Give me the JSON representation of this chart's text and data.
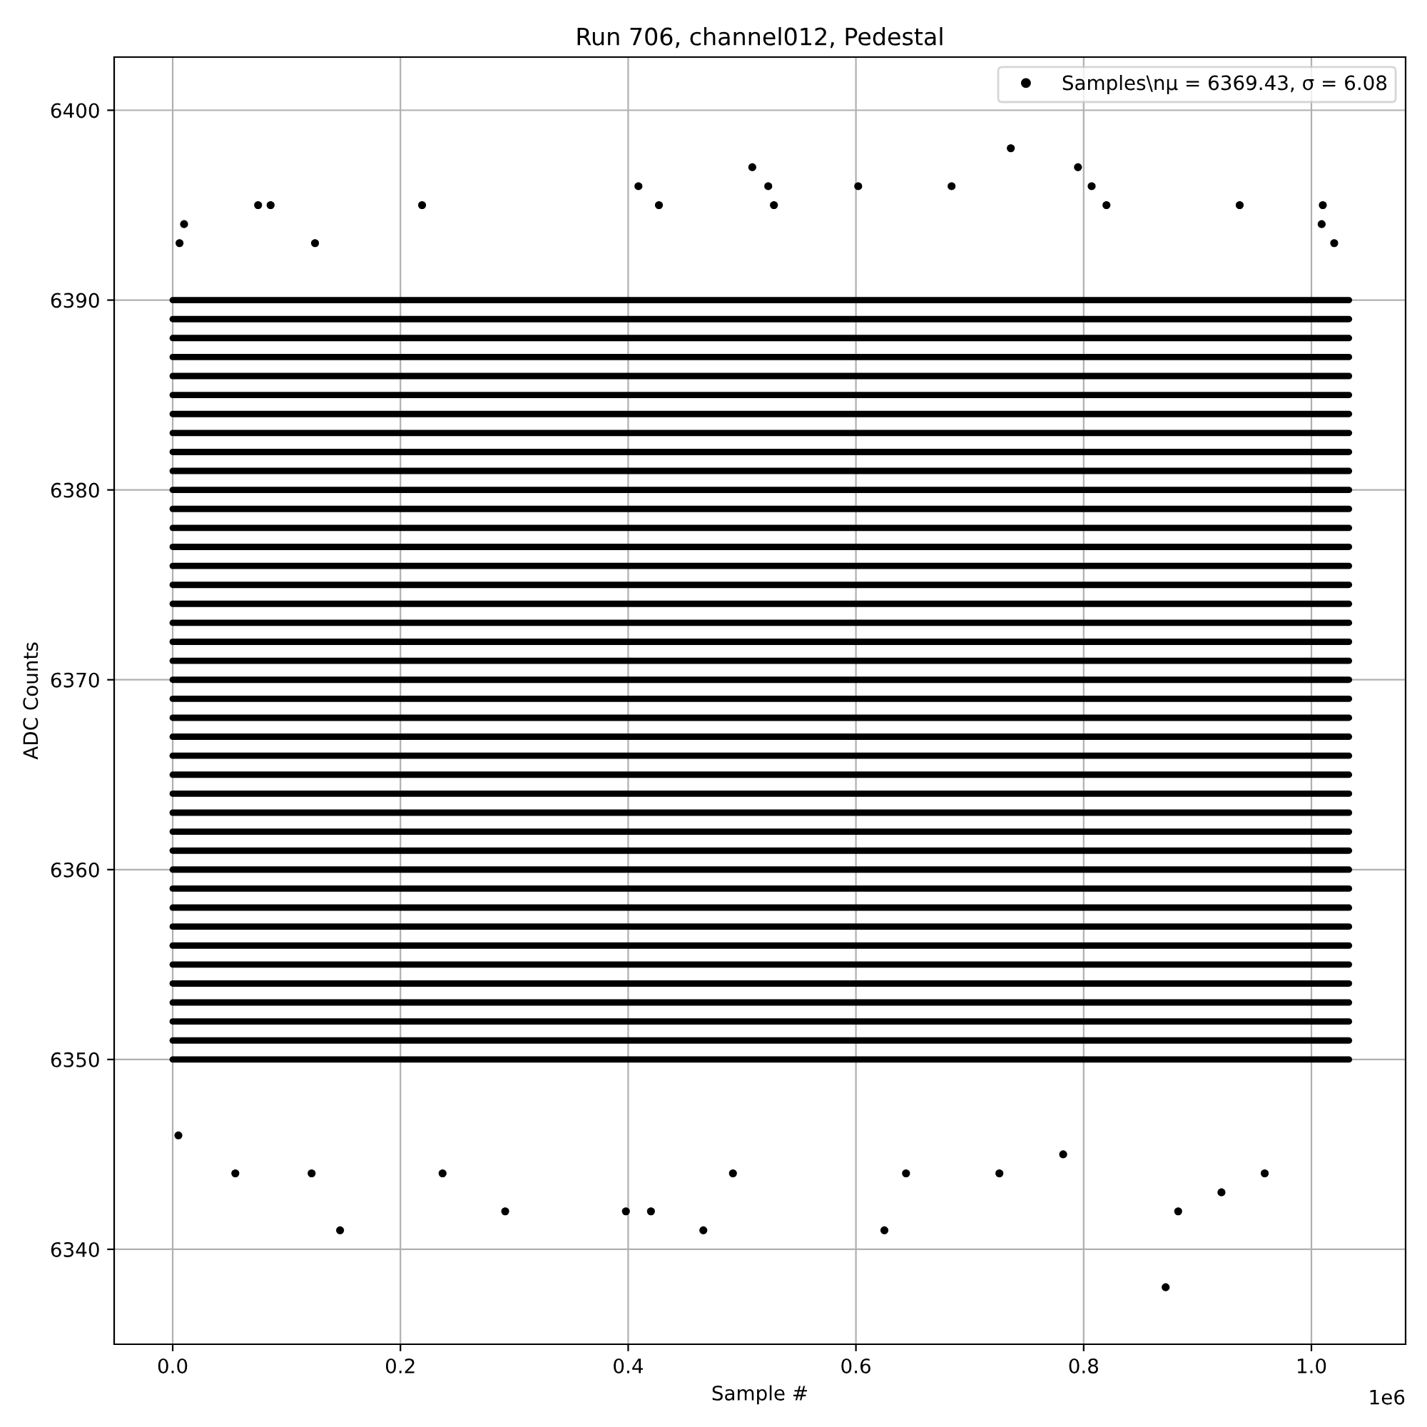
{
  "chart_data": {
    "type": "scatter",
    "title": "Run 706, channel012, Pedestal",
    "xlabel": "Sample #",
    "ylabel": "ADC Counts",
    "x": [
      0,
      1.033
    ],
    "xlim": [
      -0.0514,
      1.0827
    ],
    "ylim": [
      6335,
      6402.8
    ],
    "xticks": [
      {
        "value": 0,
        "label": "0.0"
      },
      0.2,
      0.4,
      0.6,
      0.8,
      {
        "value": 1,
        "label": "1.0"
      }
    ],
    "yticks": [
      6340,
      6350,
      6360,
      6370,
      6380,
      6390,
      6400
    ],
    "annotations": [
      "1e6"
    ],
    "grid": true,
    "legend": "top right",
    "series": [
      {
        "name": "Samples\\nμ = 6369.43, σ = 6.08",
        "color": "#000000",
        "marker": "circle",
        "x": [
          0.006,
          0.01,
          0.075,
          0.086,
          0.125,
          0.219,
          0.409,
          0.427,
          0.509,
          0.523,
          0.528,
          0.602,
          0.684,
          0.736,
          0.795,
          0.807,
          0.82,
          0.937,
          1.009,
          1.01,
          1.02,
          0.005,
          0.055,
          0.122,
          0.147,
          0.237,
          0.292,
          0.398,
          0.42,
          0.466,
          0.492,
          0.625,
          0.644,
          0.726,
          0.782,
          0.872,
          0.883,
          0.921,
          0.959
        ],
        "values": [
          6393,
          6394,
          6395,
          6395,
          6393,
          6395,
          6396,
          6395,
          6397,
          6396,
          6395,
          6396,
          6396,
          6398,
          6397,
          6396,
          6395,
          6395,
          6394,
          6395,
          6393,
          6346,
          6344,
          6344,
          6341,
          6344,
          6342,
          6342,
          6342,
          6341,
          6344,
          6341,
          6344,
          6344,
          6345,
          6338,
          6342,
          6343,
          6344
        ]
      },
      {
        "type": "line",
        "values": [
          6350,
          6350
        ]
      },
      {
        "type": "line",
        "values": [
          6351,
          6351
        ]
      },
      {
        "type": "line",
        "values": [
          6352,
          6352
        ]
      },
      {
        "type": "line",
        "values": [
          6353,
          6353
        ]
      },
      {
        "type": "line",
        "values": [
          6354,
          6354
        ]
      },
      {
        "type": "line",
        "values": [
          6355,
          6355
        ]
      },
      {
        "type": "line",
        "values": [
          6356,
          6356
        ]
      },
      {
        "type": "line",
        "values": [
          6357,
          6357
        ]
      },
      {
        "type": "line",
        "values": [
          6358,
          6358
        ]
      },
      {
        "type": "line",
        "values": [
          6359,
          6359
        ]
      },
      {
        "type": "line",
        "values": [
          6360,
          6360
        ]
      },
      {
        "type": "line",
        "values": [
          6361,
          6361
        ]
      },
      {
        "type": "line",
        "values": [
          6362,
          6362
        ]
      },
      {
        "type": "line",
        "values": [
          6363,
          6363
        ]
      },
      {
        "type": "line",
        "values": [
          6364,
          6364
        ]
      },
      {
        "type": "line",
        "values": [
          6365,
          6365
        ]
      },
      {
        "type": "line",
        "values": [
          6366,
          6366
        ]
      },
      {
        "type": "line",
        "values": [
          6367,
          6367
        ]
      },
      {
        "type": "line",
        "values": [
          6368,
          6368
        ]
      },
      {
        "type": "line",
        "values": [
          6369,
          6369
        ]
      },
      {
        "type": "line",
        "values": [
          6370,
          6370
        ]
      },
      {
        "type": "line",
        "values": [
          6371,
          6371
        ]
      },
      {
        "type": "line",
        "values": [
          6372,
          6372
        ]
      },
      {
        "type": "line",
        "values": [
          6373,
          6373
        ]
      },
      {
        "type": "line",
        "values": [
          6374,
          6374
        ]
      },
      {
        "type": "line",
        "values": [
          6375,
          6375
        ]
      },
      {
        "type": "line",
        "values": [
          6376,
          6376
        ]
      },
      {
        "type": "line",
        "values": [
          6377,
          6377
        ]
      },
      {
        "type": "line",
        "values": [
          6378,
          6378
        ]
      },
      {
        "type": "line",
        "values": [
          6379,
          6379
        ]
      },
      {
        "type": "line",
        "values": [
          6380,
          6380
        ]
      },
      {
        "type": "line",
        "values": [
          6381,
          6381
        ]
      },
      {
        "type": "line",
        "values": [
          6382,
          6382
        ]
      },
      {
        "type": "line",
        "values": [
          6383,
          6383
        ]
      },
      {
        "type": "line",
        "values": [
          6384,
          6384
        ]
      },
      {
        "type": "line",
        "values": [
          6385,
          6385
        ]
      },
      {
        "type": "line",
        "values": [
          6386,
          6386
        ]
      },
      {
        "type": "line",
        "values": [
          6387,
          6387
        ]
      },
      {
        "type": "line",
        "values": [
          6388,
          6388
        ]
      },
      {
        "type": "line",
        "values": [
          6389,
          6389
        ]
      },
      {
        "type": "line",
        "values": [
          6390,
          6390
        ]
      }
    ]
  }
}
